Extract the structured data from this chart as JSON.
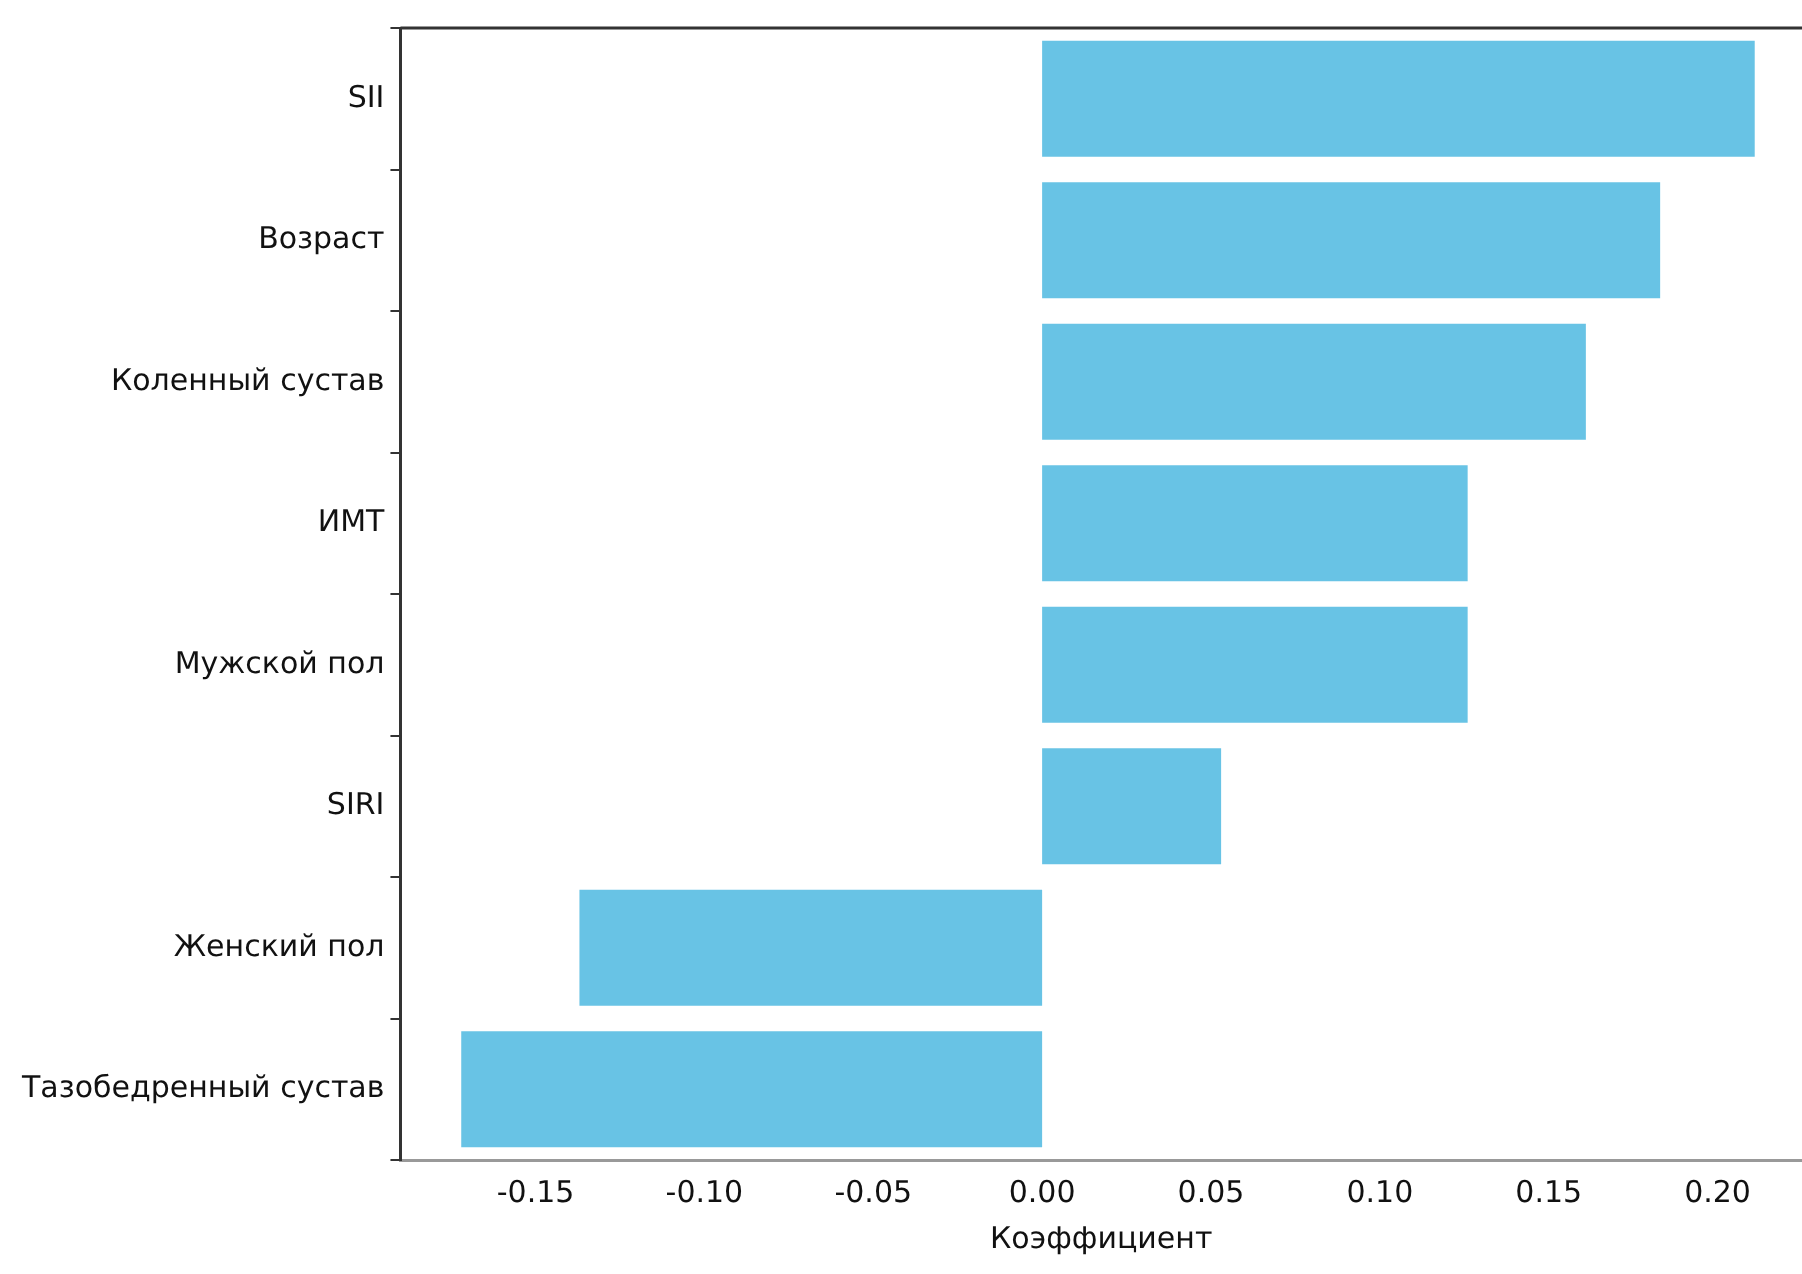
{
  "chart_data": {
    "type": "bar",
    "orientation": "horizontal",
    "xlabel": "Коэффициент",
    "categories": [
      "SII",
      "Возраст",
      "Коленный сустав",
      "ИМТ",
      "Мужской пол",
      "SIRI",
      "Женский пол",
      "Тазобедренный сустав"
    ],
    "values": [
      0.211,
      0.183,
      0.161,
      0.126,
      0.126,
      0.053,
      -0.137,
      -0.172
    ],
    "color": "#68c3e5",
    "xlim": [
      -0.19,
      0.225
    ],
    "xticks": [
      {
        "value": -0.15,
        "label": "-0.15"
      },
      {
        "value": -0.1,
        "label": "-0.10"
      },
      {
        "value": -0.05,
        "label": "-0.05"
      },
      {
        "value": 0,
        "label": "0.00"
      },
      {
        "value": 0.05,
        "label": "0.05"
      },
      {
        "value": 0.1,
        "label": "0.10"
      },
      {
        "value": 0.15,
        "label": "0.15"
      },
      {
        "value": 0.2,
        "label": "0.20"
      }
    ],
    "grid": false,
    "legend": false
  }
}
